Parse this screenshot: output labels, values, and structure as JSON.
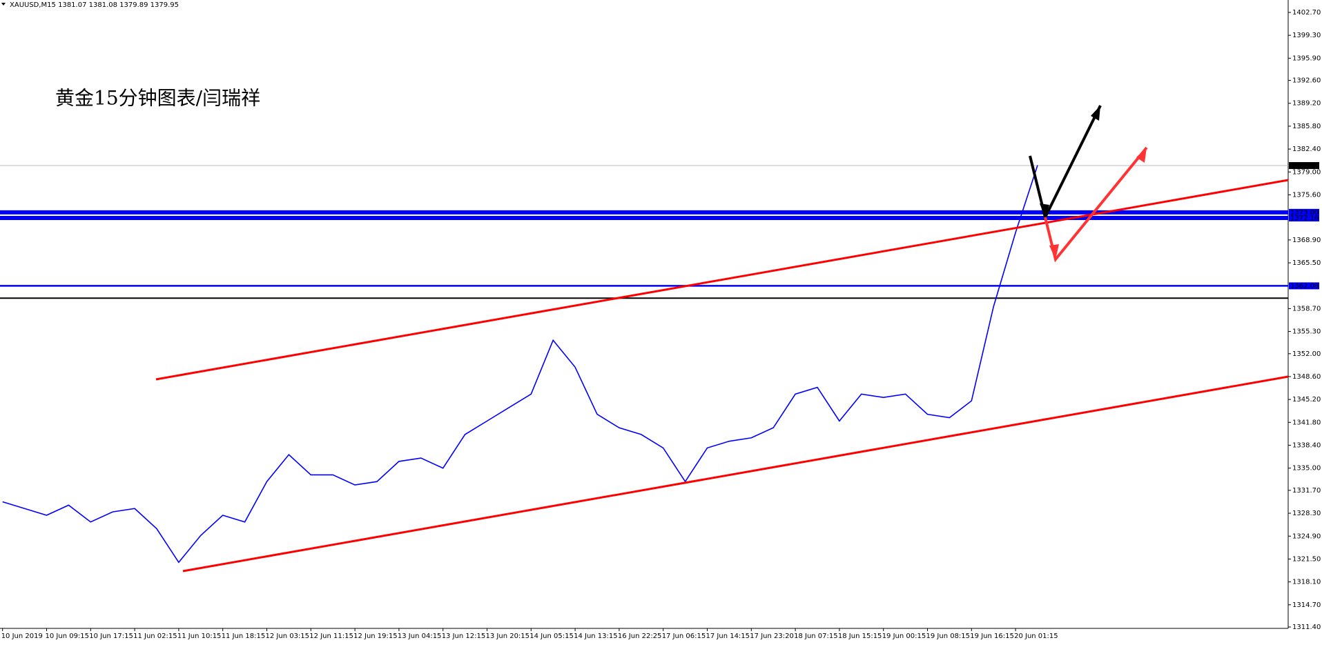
{
  "chart_data": {
    "type": "line",
    "header": "XAUUSD,M15  1381.07 1381.08 1379.89 1379.95",
    "annotation": "黄金15分钟图表/闫瑞祥",
    "categories": [
      "10 Jun 2019",
      null,
      "10 Jun 09:15",
      null,
      "10 Jun 17:15",
      null,
      "11 Jun 02:15",
      null,
      "11 Jun 10:15",
      null,
      "11 Jun 18:15",
      null,
      "12 Jun 03:15",
      null,
      "12 Jun 11:15",
      null,
      "12 Jun 19:15",
      null,
      "13 Jun 04:15",
      null,
      "13 Jun 12:15",
      null,
      "13 Jun 20:15",
      null,
      "14 Jun 05:15",
      null,
      "14 Jun 13:15",
      null,
      "16 Jun 22:25",
      null,
      "17 Jun 06:15",
      null,
      "17 Jun 14:15",
      null,
      "17 Jun 23:20",
      null,
      "18 Jun 07:15",
      null,
      "18 Jun 15:15",
      null,
      "19 Jun 00:15",
      null,
      "19 Jun 08:15",
      null,
      "19 Jun 16:15",
      null,
      "20 Jun 01:15",
      null
    ],
    "series": [
      {
        "name": "XAUUSD",
        "color": "#0000ff",
        "values": [
          1330,
          1329,
          1328,
          1329.5,
          1327,
          1328.5,
          1329,
          1326,
          1321,
          1325,
          1328,
          1327,
          1333,
          1337,
          1334,
          1334,
          1332.5,
          1333,
          1336,
          1336.5,
          1335,
          1340,
          1342,
          1344,
          1346,
          1354,
          1350,
          1343,
          1341,
          1340,
          1338,
          1333,
          1338,
          1339,
          1339.5,
          1341,
          1346,
          1347,
          1342,
          1346,
          1345.5,
          1346,
          1343,
          1342.5,
          1345,
          1359,
          1370,
          1380
        ]
      }
    ],
    "ylim": [
      1311.4,
      1402.7
    ],
    "yticks": [
      {
        "value": 1311.4,
        "label": "1311.40"
      },
      {
        "value": 1314.7,
        "label": "1314.70"
      },
      {
        "value": 1318.1,
        "label": "1318.10"
      },
      {
        "value": 1321.5,
        "label": "1321.50"
      },
      {
        "value": 1324.9,
        "label": "1324.90"
      },
      {
        "value": 1328.3,
        "label": "1328.30"
      },
      {
        "value": 1331.7,
        "label": "1331.70"
      },
      {
        "value": 1335,
        "label": "1335.00"
      },
      {
        "value": 1338.4,
        "label": "1338.40"
      },
      {
        "value": 1341.8,
        "label": "1341.80"
      },
      {
        "value": 1345.2,
        "label": "1345.20"
      },
      {
        "value": 1348.6,
        "label": "1348.60"
      },
      {
        "value": 1352,
        "label": "1352.00"
      },
      {
        "value": 1355.3,
        "label": "1355.30"
      },
      {
        "value": 1358.7,
        "label": "1358.70"
      },
      {
        "value": 1365.5,
        "label": "1365.50"
      },
      {
        "value": 1368.9,
        "label": "1368.90"
      },
      {
        "value": 1375.6,
        "label": "1375.60"
      },
      {
        "value": 1379,
        "label": "1379.00"
      },
      {
        "value": 1382.4,
        "label": "1382.40"
      },
      {
        "value": 1385.8,
        "label": "1385.80"
      },
      {
        "value": 1389.2,
        "label": "1389.20"
      },
      {
        "value": 1392.6,
        "label": "1392.60"
      },
      {
        "value": 1395.9,
        "label": "1395.90"
      },
      {
        "value": 1399.3,
        "label": "1399.30"
      },
      {
        "value": 1402.7,
        "label": "1402.70"
      }
    ],
    "levels": [
      {
        "value": 1379.95,
        "label": "1379.95",
        "color": "#000000"
      },
      {
        "value": 1373,
        "label": "1373.00",
        "color": "#0000ff"
      },
      {
        "value": 1372.16,
        "label": "1372.16",
        "color": "#0000ff"
      },
      {
        "value": 1362.08,
        "label": "1362.08",
        "color": "#0000ff"
      }
    ],
    "support_line": {
      "value": 1360.25,
      "color": "#000000"
    }
  }
}
